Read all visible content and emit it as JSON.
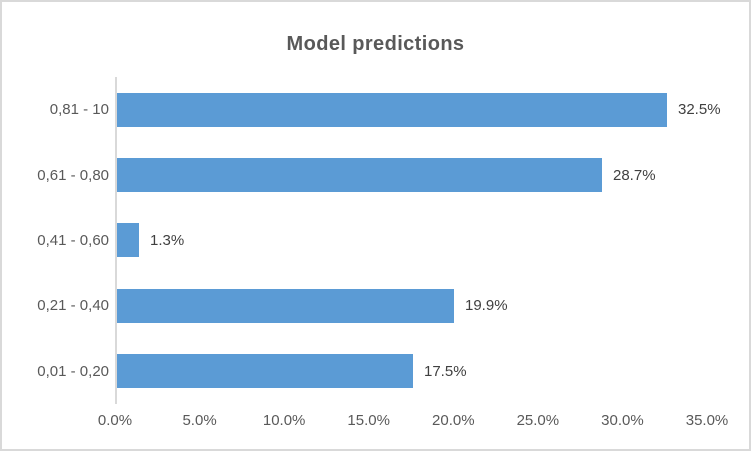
{
  "chart_data": {
    "type": "bar",
    "orientation": "horizontal",
    "title": "Model predictions",
    "categories": [
      "0,81 - 10",
      "0,61 - 0,80",
      "0,41 - 0,60",
      "0,21 - 0,40",
      "0,01 - 0,20"
    ],
    "values": [
      32.5,
      28.7,
      1.3,
      19.9,
      17.5
    ],
    "value_labels": [
      "32.5%",
      "28.7%",
      "1.3%",
      "19.9%",
      "17.5%"
    ],
    "x_ticks": [
      {
        "value": 0,
        "label": "0.0%"
      },
      {
        "value": 5,
        "label": "5.0%"
      },
      {
        "value": 10,
        "label": "10.0%"
      },
      {
        "value": 15,
        "label": "15.0%"
      },
      {
        "value": 20,
        "label": "20.0%"
      },
      {
        "value": 25,
        "label": "25.0%"
      },
      {
        "value": 30,
        "label": "30.0%"
      },
      {
        "value": 35,
        "label": "35.0%"
      }
    ],
    "xlim": [
      0,
      35
    ],
    "grid": false,
    "legend_visible": false,
    "colors": {
      "bar": "#5B9BD5",
      "title_text": "#595959",
      "axis_text": "#595959",
      "data_label_text": "#404040",
      "axis_line": "#D9D9D9",
      "chart_border": "#D9D9D9"
    }
  }
}
